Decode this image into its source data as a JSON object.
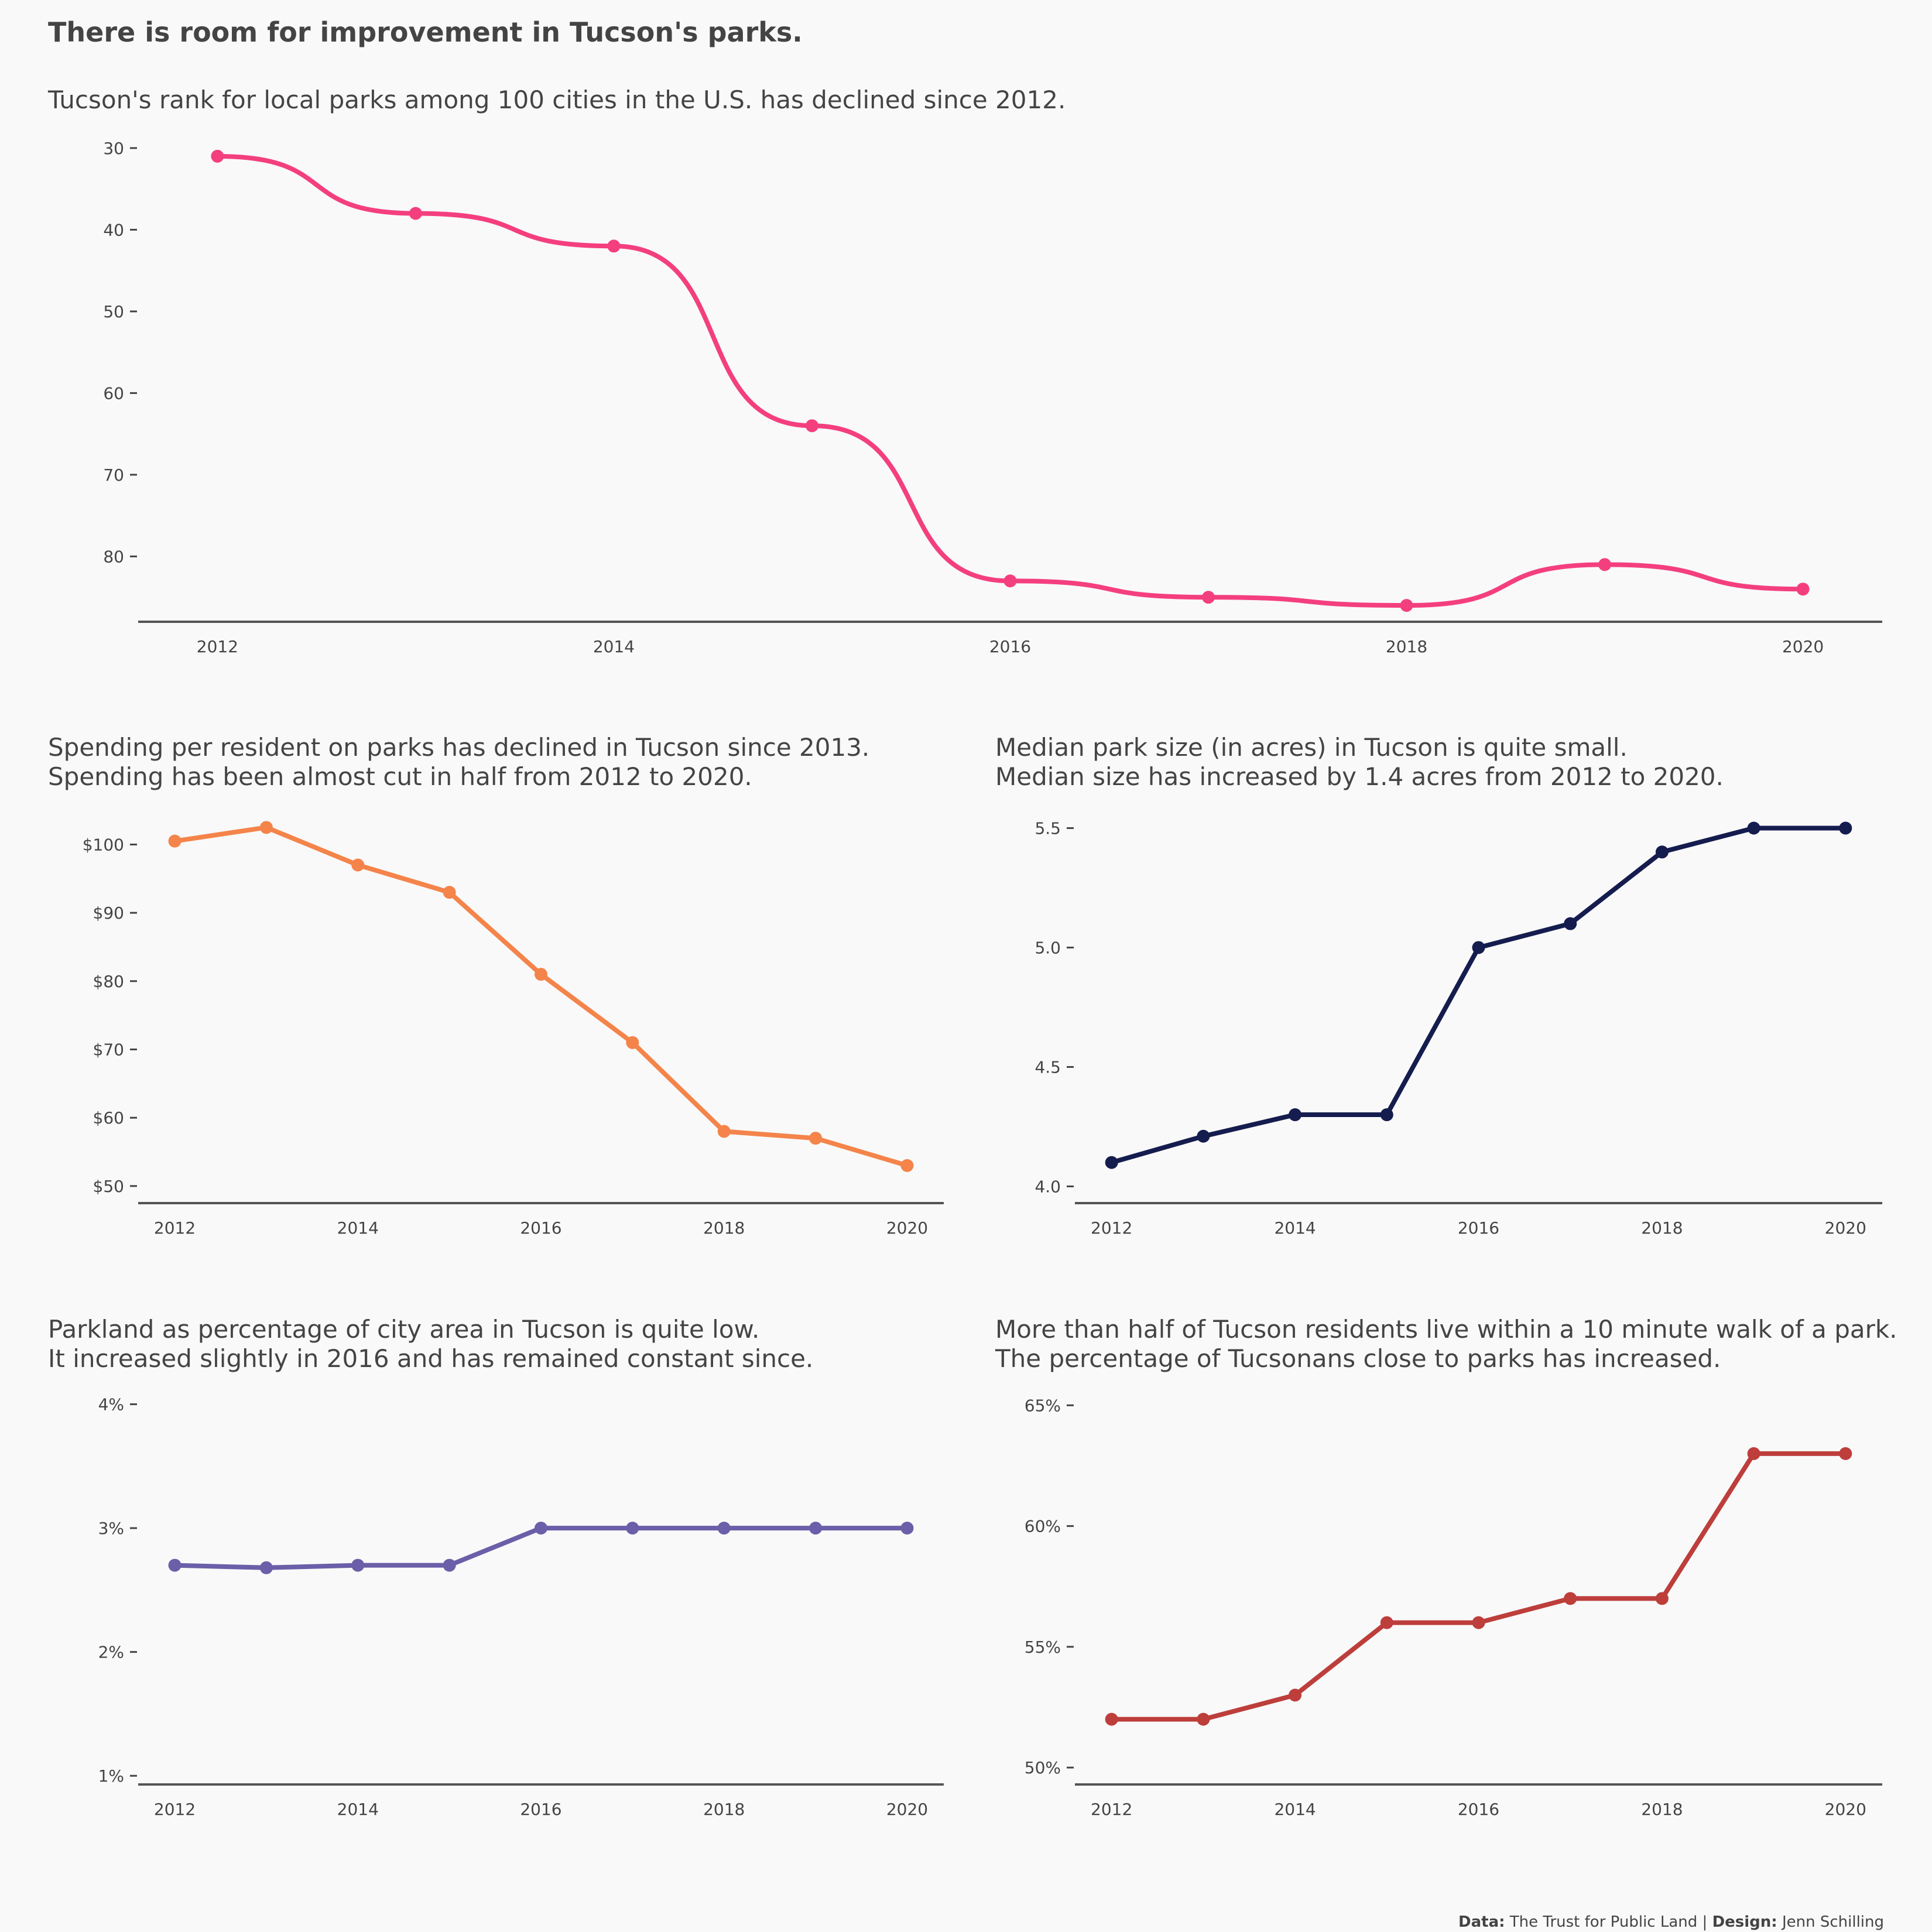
{
  "title": "There is room for improvement in Tucson's parks.",
  "caption": {
    "data_label": "Data:",
    "data_source": "The Trust for Public Land |",
    "design_label": "Design:",
    "design_name": "Jenn Schilling"
  },
  "chart_data": [
    {
      "id": "rank",
      "type": "line",
      "smooth": true,
      "subtitle": [
        "Tucson's rank for local parks among 100 cities in the U.S. has declined since 2012."
      ],
      "x": [
        2012,
        2013,
        2014,
        2015,
        2016,
        2017,
        2018,
        2019,
        2020
      ],
      "values": [
        31,
        38,
        42,
        64,
        83,
        85,
        86,
        81,
        84
      ],
      "yreversed": true,
      "xlim": [
        2011.6,
        2020.4
      ],
      "ylim": [
        28,
        88
      ],
      "xticks": [
        2012,
        2014,
        2016,
        2018,
        2020
      ],
      "yticks": [
        30,
        40,
        50,
        60,
        70,
        80
      ],
      "ytick_labels": [
        "30",
        "40",
        "50",
        "60",
        "70",
        "80"
      ],
      "color": "#f43f7f",
      "grid": false
    },
    {
      "id": "spending",
      "type": "line",
      "subtitle": [
        "Spending per resident on parks has declined in Tucson since 2013.",
        "Spending has been almost cut in half from 2012 to 2020."
      ],
      "x": [
        2012,
        2013,
        2014,
        2015,
        2016,
        2017,
        2018,
        2019,
        2020
      ],
      "values": [
        100.5,
        102.5,
        97,
        93,
        81,
        71,
        58,
        57,
        53
      ],
      "xlim": [
        2011.6,
        2020.4
      ],
      "ylim": [
        47.5,
        104.5
      ],
      "xticks": [
        2012,
        2014,
        2016,
        2018,
        2020
      ],
      "yticks": [
        50,
        60,
        70,
        80,
        90,
        100
      ],
      "ytick_labels": [
        "$50",
        "$60",
        "$70",
        "$80",
        "$90",
        "$100"
      ],
      "color": "#f4844a",
      "grid": false
    },
    {
      "id": "median-size",
      "type": "line",
      "subtitle": [
        "Median park size (in acres) in Tucson is quite small.",
        "Median size has increased by 1.4 acres from 2012 to 2020."
      ],
      "x": [
        2012,
        2013,
        2014,
        2015,
        2016,
        2017,
        2018,
        2019,
        2020
      ],
      "values": [
        4.1,
        4.21,
        4.3,
        4.3,
        5.0,
        5.1,
        5.4,
        5.5,
        5.5
      ],
      "xlim": [
        2011.6,
        2020.4
      ],
      "ylim": [
        3.93,
        5.56
      ],
      "xticks": [
        2012,
        2014,
        2016,
        2018,
        2020
      ],
      "yticks": [
        4.0,
        4.5,
        5.0,
        5.5
      ],
      "ytick_labels": [
        "4.0",
        "4.5",
        "5.0",
        "5.5"
      ],
      "color": "#151c4e",
      "grid": false
    },
    {
      "id": "parkland",
      "type": "line",
      "subtitle": [
        "Parkland as percentage of city area in Tucson is quite low.",
        "It increased slightly in 2016 and has remained constant since."
      ],
      "x": [
        2012,
        2013,
        2014,
        2015,
        2016,
        2017,
        2018,
        2019,
        2020
      ],
      "values": [
        2.7,
        2.68,
        2.7,
        2.7,
        3.0,
        3.0,
        3.0,
        3.0,
        3.0
      ],
      "xlim": [
        2011.6,
        2020.4
      ],
      "ylim": [
        0.93,
        4.05
      ],
      "xticks": [
        2012,
        2014,
        2016,
        2018,
        2020
      ],
      "yticks": [
        1,
        2,
        3,
        4
      ],
      "ytick_labels": [
        "1%",
        "2%",
        "3%",
        "4%"
      ],
      "color": "#6a5fa8",
      "grid": false
    },
    {
      "id": "walk",
      "type": "line",
      "subtitle": [
        "More than half of Tucson residents live within a 10 minute walk of a park.",
        "The percentage of Tucsonans close to parks has increased."
      ],
      "x": [
        2012,
        2013,
        2014,
        2015,
        2016,
        2017,
        2018,
        2019,
        2020
      ],
      "values": [
        52,
        52,
        53,
        56,
        56,
        57,
        57,
        63,
        63
      ],
      "xlim": [
        2011.6,
        2020.4
      ],
      "ylim": [
        49.3,
        65.3
      ],
      "xticks": [
        2012,
        2014,
        2016,
        2018,
        2020
      ],
      "yticks": [
        50,
        55,
        60,
        65
      ],
      "ytick_labels": [
        "50%",
        "55%",
        "60%",
        "65%"
      ],
      "color": "#bd3e3b",
      "grid": false
    }
  ]
}
